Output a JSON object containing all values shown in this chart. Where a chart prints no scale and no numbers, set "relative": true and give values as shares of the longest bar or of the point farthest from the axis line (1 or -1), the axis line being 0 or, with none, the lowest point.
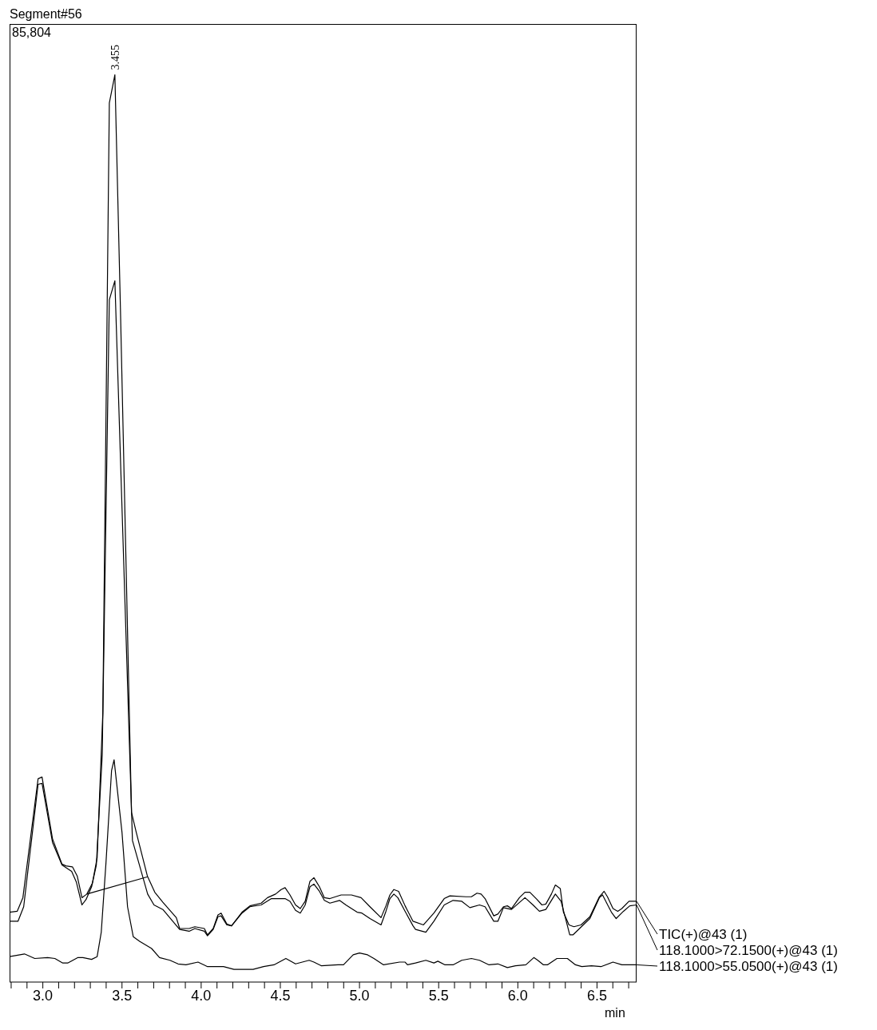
{
  "chart_data": {
    "type": "line",
    "title": "Segment#56",
    "xlabel": "min",
    "relative": true,
    "annotations": [
      "85,804",
      {
        "text": "3.455",
        "x": 3.455,
        "y": 1.0
      }
    ],
    "xlim": [
      2.79,
      6.75
    ],
    "xticks": [
      {
        "value": 2.8,
        "label": null
      },
      {
        "value": 2.9,
        "label": null
      },
      {
        "value": 3.0,
        "label": "3.0"
      },
      {
        "value": 3.1,
        "label": null
      },
      {
        "value": 3.2,
        "label": null
      },
      {
        "value": 3.3,
        "label": null
      },
      {
        "value": 3.4,
        "label": null
      },
      {
        "value": 3.5,
        "label": "3.5"
      },
      {
        "value": 3.6,
        "label": null
      },
      {
        "value": 3.7,
        "label": null
      },
      {
        "value": 3.8,
        "label": null
      },
      {
        "value": 3.9,
        "label": null
      },
      {
        "value": 4.0,
        "label": "4.0"
      },
      {
        "value": 4.1,
        "label": null
      },
      {
        "value": 4.2,
        "label": null
      },
      {
        "value": 4.3,
        "label": null
      },
      {
        "value": 4.4,
        "label": null
      },
      {
        "value": 4.5,
        "label": "4.5"
      },
      {
        "value": 4.6,
        "label": null
      },
      {
        "value": 4.7,
        "label": null
      },
      {
        "value": 4.8,
        "label": null
      },
      {
        "value": 4.9,
        "label": null
      },
      {
        "value": 5.0,
        "label": "5.0"
      },
      {
        "value": 5.1,
        "label": null
      },
      {
        "value": 5.2,
        "label": null
      },
      {
        "value": 5.3,
        "label": null
      },
      {
        "value": 5.4,
        "label": null
      },
      {
        "value": 5.5,
        "label": "5.5"
      },
      {
        "value": 5.6,
        "label": null
      },
      {
        "value": 5.7,
        "label": null
      },
      {
        "value": 5.8,
        "label": null
      },
      {
        "value": 5.9,
        "label": null
      },
      {
        "value": 6.0,
        "label": "6.0"
      },
      {
        "value": 6.1,
        "label": null
      },
      {
        "value": 6.2,
        "label": null
      },
      {
        "value": 6.3,
        "label": null
      },
      {
        "value": 6.4,
        "label": null
      },
      {
        "value": 6.5,
        "label": "6.5"
      },
      {
        "value": 6.6,
        "label": null
      },
      {
        "value": 6.7,
        "label": null
      }
    ],
    "series": [
      {
        "name": "TIC(+)@43 (1)",
        "color": "#000000",
        "x": [
          2.79,
          2.838,
          2.874,
          2.97,
          2.995,
          3.061,
          3.121,
          3.146,
          3.187,
          3.217,
          3.247,
          3.278,
          3.313,
          3.343,
          3.379,
          3.42,
          3.455,
          3.49,
          3.56,
          3.59,
          3.66,
          3.707,
          3.758,
          3.843,
          3.864,
          3.924,
          3.96,
          4.02,
          4.04,
          4.076,
          4.106,
          4.126,
          4.162,
          4.192,
          4.258,
          4.308,
          4.379,
          4.419,
          4.47,
          4.505,
          4.53,
          4.561,
          4.596,
          4.626,
          4.657,
          4.687,
          4.712,
          4.747,
          4.778,
          4.813,
          4.884,
          4.949,
          5.01,
          5.066,
          5.136,
          5.167,
          5.192,
          5.217,
          5.247,
          5.288,
          5.338,
          5.404,
          5.47,
          5.535,
          5.571,
          5.672,
          5.707,
          5.742,
          5.768,
          5.793,
          5.848,
          5.874,
          5.909,
          5.934,
          5.96,
          6.01,
          6.045,
          6.076,
          6.121,
          6.152,
          6.177,
          6.212,
          6.237,
          6.268,
          6.288,
          6.323,
          6.354,
          6.399,
          6.455,
          6.515,
          6.545,
          6.566,
          6.601,
          6.631,
          6.657,
          6.702,
          6.75
        ],
        "values": [
          0.077,
          0.078,
          0.093,
          0.224,
          0.226,
          0.158,
          0.13,
          0.128,
          0.127,
          0.117,
          0.093,
          0.097,
          0.109,
          0.137,
          0.297,
          0.969,
          1.0,
          0.743,
          0.187,
          0.165,
          0.117,
          0.099,
          0.088,
          0.071,
          0.059,
          0.059,
          0.061,
          0.059,
          0.052,
          0.059,
          0.074,
          0.076,
          0.064,
          0.062,
          0.077,
          0.084,
          0.087,
          0.093,
          0.097,
          0.102,
          0.104,
          0.096,
          0.085,
          0.081,
          0.089,
          0.111,
          0.115,
          0.105,
          0.093,
          0.092,
          0.096,
          0.096,
          0.093,
          0.083,
          0.071,
          0.084,
          0.096,
          0.102,
          0.1,
          0.084,
          0.067,
          0.063,
          0.076,
          0.092,
          0.095,
          0.094,
          0.094,
          0.098,
          0.097,
          0.092,
          0.073,
          0.075,
          0.083,
          0.084,
          0.081,
          0.093,
          0.099,
          0.099,
          0.091,
          0.085,
          0.086,
          0.097,
          0.107,
          0.103,
          0.077,
          0.063,
          0.061,
          0.063,
          0.072,
          0.094,
          0.1,
          0.094,
          0.081,
          0.078,
          0.081,
          0.089,
          0.089
        ]
      },
      {
        "name": "118.1000>72.1500(+)@43 (1)",
        "color": "#000000",
        "x": [
          2.79,
          2.843,
          2.879,
          2.97,
          2.995,
          3.061,
          3.121,
          3.182,
          3.212,
          3.247,
          3.273,
          3.308,
          3.338,
          3.375,
          3.42,
          3.455,
          3.566,
          3.662,
          3.702,
          3.758,
          3.864,
          3.924,
          3.96,
          4.02,
          4.04,
          4.076,
          4.106,
          4.126,
          4.162,
          4.192,
          4.258,
          4.308,
          4.379,
          4.444,
          4.53,
          4.561,
          4.596,
          4.626,
          4.657,
          4.687,
          4.712,
          4.747,
          4.778,
          4.813,
          4.874,
          4.914,
          4.985,
          5.015,
          5.066,
          5.136,
          5.167,
          5.192,
          5.217,
          5.242,
          5.288,
          5.338,
          5.354,
          5.419,
          5.47,
          5.535,
          5.591,
          5.646,
          5.697,
          5.758,
          5.793,
          5.848,
          5.874,
          5.909,
          5.96,
          6.045,
          6.096,
          6.136,
          6.177,
          6.237,
          6.273,
          6.328,
          6.348,
          6.455,
          6.515,
          6.535,
          6.591,
          6.621,
          6.667,
          6.707,
          6.75
        ],
        "values": [
          0.067,
          0.067,
          0.083,
          0.218,
          0.219,
          0.154,
          0.129,
          0.122,
          0.11,
          0.085,
          0.091,
          0.105,
          0.129,
          0.25,
          0.752,
          0.773,
          0.156,
          0.097,
          0.085,
          0.08,
          0.058,
          0.056,
          0.059,
          0.056,
          0.051,
          0.058,
          0.072,
          0.073,
          0.063,
          0.062,
          0.076,
          0.083,
          0.085,
          0.092,
          0.092,
          0.089,
          0.079,
          0.076,
          0.085,
          0.105,
          0.108,
          0.1,
          0.09,
          0.087,
          0.09,
          0.085,
          0.077,
          0.076,
          0.07,
          0.063,
          0.078,
          0.092,
          0.097,
          0.093,
          0.078,
          0.062,
          0.058,
          0.055,
          0.067,
          0.085,
          0.09,
          0.089,
          0.082,
          0.085,
          0.083,
          0.067,
          0.067,
          0.082,
          0.08,
          0.093,
          0.085,
          0.078,
          0.08,
          0.097,
          0.089,
          0.052,
          0.052,
          0.07,
          0.093,
          0.096,
          0.077,
          0.07,
          0.078,
          0.084,
          0.085
        ]
      },
      {
        "name": "118.1000>55.0500(+)@43 (1)",
        "color": "#000000",
        "x": [
          2.79,
          2.884,
          2.949,
          3.03,
          3.076,
          3.126,
          3.157,
          3.222,
          3.253,
          3.308,
          3.343,
          3.369,
          3.399,
          3.434,
          3.45,
          3.5,
          3.535,
          3.571,
          3.611,
          3.687,
          3.737,
          3.803,
          3.854,
          3.904,
          3.98,
          4.04,
          4.141,
          4.207,
          4.328,
          4.394,
          4.46,
          4.535,
          4.596,
          4.682,
          4.712,
          4.758,
          4.864,
          4.899,
          4.96,
          5.0,
          5.051,
          5.091,
          5.152,
          5.253,
          5.288,
          5.303,
          5.354,
          5.419,
          5.47,
          5.495,
          5.54,
          5.591,
          5.646,
          5.707,
          5.758,
          5.818,
          5.874,
          5.934,
          5.985,
          6.051,
          6.101,
          6.126,
          6.162,
          6.187,
          6.247,
          6.313,
          6.364,
          6.404,
          6.465,
          6.525,
          6.601,
          6.657,
          6.75
        ],
        "values": [
          0.028,
          0.031,
          0.026,
          0.027,
          0.026,
          0.021,
          0.021,
          0.027,
          0.027,
          0.025,
          0.028,
          0.055,
          0.132,
          0.233,
          0.245,
          0.165,
          0.083,
          0.05,
          0.045,
          0.037,
          0.027,
          0.024,
          0.02,
          0.019,
          0.022,
          0.017,
          0.017,
          0.014,
          0.014,
          0.017,
          0.019,
          0.026,
          0.02,
          0.024,
          0.022,
          0.018,
          0.019,
          0.019,
          0.03,
          0.032,
          0.03,
          0.026,
          0.019,
          0.022,
          0.022,
          0.019,
          0.021,
          0.024,
          0.021,
          0.023,
          0.019,
          0.019,
          0.024,
          0.026,
          0.024,
          0.019,
          0.02,
          0.016,
          0.018,
          0.019,
          0.027,
          0.024,
          0.019,
          0.019,
          0.026,
          0.026,
          0.019,
          0.017,
          0.018,
          0.017,
          0.022,
          0.019,
          0.019
        ]
      },
      {
        "type": "line",
        "color": "#000000",
        "x": [
          3.278,
          3.662
        ],
        "values": [
          0.097,
          0.116
        ]
      }
    ]
  }
}
